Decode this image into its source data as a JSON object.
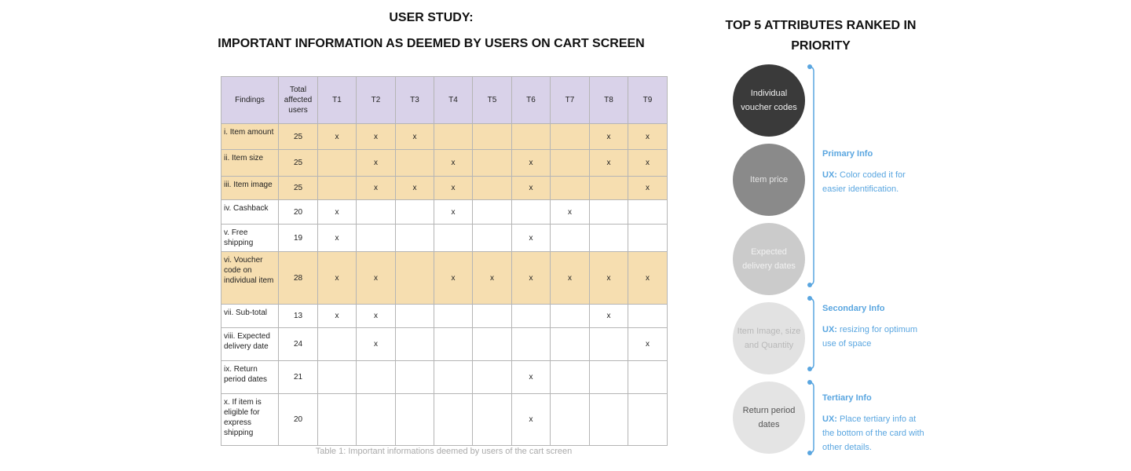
{
  "left": {
    "title_lines": [
      "USER STUDY:",
      "IMPORTANT INFORMATION AS DEEMED BY USERS ON CART SCREEN"
    ],
    "table": {
      "header": [
        "Findings",
        "Total affected users",
        "T1",
        "T2",
        "T3",
        "T4",
        "T5",
        "T6",
        "T7",
        "T8",
        "T9"
      ],
      "rows": [
        {
          "highlight": true,
          "cells": [
            "i. Item amount",
            25,
            "x",
            "x",
            "x",
            null,
            null,
            null,
            null,
            "x",
            "x"
          ]
        },
        {
          "highlight": true,
          "cells": [
            "ii. Item size",
            25,
            null,
            "x",
            null,
            "x",
            null,
            "x",
            null,
            "x",
            "x"
          ]
        },
        {
          "highlight": true,
          "cells": [
            "iii. Item image",
            25,
            null,
            "x",
            "x",
            "x",
            null,
            "x",
            null,
            null,
            "x"
          ]
        },
        {
          "highlight": false,
          "cells": [
            "iv. Cashback",
            20,
            "x",
            null,
            null,
            "x",
            null,
            null,
            "x",
            null,
            null
          ]
        },
        {
          "highlight": false,
          "cells": [
            "v. Free shipping",
            19,
            "x",
            null,
            null,
            null,
            null,
            "x",
            null,
            null,
            null
          ]
        },
        {
          "highlight": true,
          "cells": [
            "vi. Voucher code on individual item",
            28,
            "x",
            "x",
            null,
            "x",
            "x",
            "x",
            "x",
            "x",
            "x"
          ]
        },
        {
          "highlight": false,
          "cells": [
            "vii. Sub-total",
            13,
            "x",
            "x",
            null,
            null,
            null,
            null,
            null,
            "x",
            null
          ]
        },
        {
          "highlight": false,
          "cells": [
            "viii. Expected delivery date",
            24,
            null,
            "x",
            null,
            null,
            null,
            null,
            null,
            null,
            "x"
          ]
        },
        {
          "highlight": false,
          "cells": [
            "ix. Return period dates",
            21,
            null,
            null,
            null,
            null,
            null,
            "x",
            null,
            null,
            null
          ]
        },
        {
          "highlight": false,
          "cells": [
            "x. If item is eligible for express shipping",
            20,
            null,
            null,
            null,
            null,
            null,
            "x",
            null,
            null,
            null
          ]
        }
      ],
      "caption": "Table 1: Important informations deemed by users of the cart screen"
    }
  },
  "right": {
    "title": "TOP 5 ATTRIBUTES RANKED IN PRIORITY",
    "attributes": [
      "Individual voucher codes",
      "Item price",
      "Expected delivery dates",
      "Item Image, size and Quantity",
      "Return period dates"
    ],
    "groups": [
      {
        "title": "Primary Info",
        "ux_label": "UX:",
        "ux_text": "Color coded it for easier identification."
      },
      {
        "title": "Secondary Info",
        "ux_label": "UX:",
        "ux_text": "resizing for optimum use of space"
      },
      {
        "title": "Tertiary Info",
        "ux_label": "UX:",
        "ux_text": "Place tertiary info at the bottom of the card with other details."
      }
    ]
  }
}
